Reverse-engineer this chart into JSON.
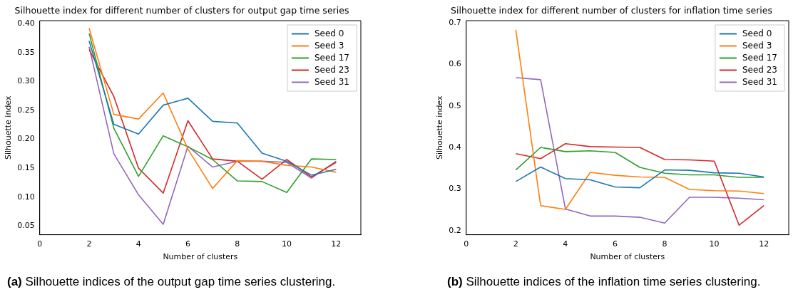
{
  "chart_data": [
    {
      "type": "line",
      "title": "Silhouette index for different number of clusters for output gap time series",
      "xlabel": "Number of clusters",
      "ylabel": "Silhouette index",
      "x": [
        2,
        3,
        4,
        5,
        6,
        7,
        8,
        9,
        10,
        11,
        12
      ],
      "series": [
        {
          "name": "Seed 0",
          "color": "#1f77b4",
          "values": [
            0.37,
            0.226,
            0.209,
            0.259,
            0.271,
            0.231,
            0.228,
            0.176,
            0.162,
            0.138,
            0.148
          ]
        },
        {
          "name": "Seed 3",
          "color": "#ff7f0e",
          "values": [
            0.392,
            0.243,
            0.235,
            0.28,
            0.183,
            0.115,
            0.163,
            0.162,
            0.155,
            0.152,
            0.143
          ]
        },
        {
          "name": "Seed 17",
          "color": "#2ca02c",
          "values": [
            0.383,
            0.219,
            0.136,
            0.206,
            0.187,
            0.165,
            0.128,
            0.127,
            0.108,
            0.166,
            0.165
          ]
        },
        {
          "name": "Seed 23",
          "color": "#d62728",
          "values": [
            0.355,
            0.274,
            0.15,
            0.107,
            0.232,
            0.166,
            0.162,
            0.131,
            0.165,
            0.135,
            0.16
          ]
        },
        {
          "name": "Seed 31",
          "color": "#9467bd",
          "values": [
            0.36,
            0.175,
            0.104,
            0.053,
            0.188,
            0.152,
            0.162,
            0.162,
            0.16,
            0.133,
            0.162
          ]
        }
      ],
      "xlim": [
        0,
        13
      ],
      "xticks": [
        0,
        2,
        4,
        6,
        8,
        10,
        12
      ],
      "ylim": [
        0.035,
        0.405
      ],
      "yticks": [
        {
          "value": 0.05,
          "label": "0.05"
        },
        {
          "value": 0.1,
          "label": "0.10"
        },
        {
          "value": 0.15,
          "label": "0.15"
        },
        {
          "value": 0.2,
          "label": "0.20"
        },
        {
          "value": 0.25,
          "label": "0.25"
        },
        {
          "value": 0.3,
          "label": "0.30"
        },
        {
          "value": 0.35,
          "label": "0.35"
        },
        {
          "value": 0.4,
          "label": "0.40"
        }
      ],
      "legend": "top right",
      "grid": false,
      "marker": "none",
      "line_style": "solid",
      "annotations": [
        "(a) Silhouette indices of the output gap time series clustering."
      ]
    },
    {
      "type": "line",
      "title": "Silhouette index for different number of clusters for inflation time series",
      "xlabel": "Number of clusters",
      "ylabel": "Silhouette index",
      "x": [
        2,
        3,
        4,
        5,
        6,
        7,
        8,
        9,
        10,
        11,
        12
      ],
      "series": [
        {
          "name": "Seed 0",
          "color": "#1f77b4",
          "values": [
            0.318,
            0.353,
            0.325,
            0.322,
            0.305,
            0.303,
            0.346,
            0.345,
            0.339,
            0.338,
            0.329
          ]
        },
        {
          "name": "Seed 3",
          "color": "#ff7f0e",
          "values": [
            0.683,
            0.26,
            0.251,
            0.34,
            0.333,
            0.329,
            0.328,
            0.299,
            0.296,
            0.295,
            0.289
          ]
        },
        {
          "name": "Seed 17",
          "color": "#2ca02c",
          "values": [
            0.346,
            0.4,
            0.39,
            0.392,
            0.388,
            0.352,
            0.338,
            0.334,
            0.334,
            0.328,
            0.328
          ]
        },
        {
          "name": "Seed 23",
          "color": "#d62728",
          "values": [
            0.385,
            0.373,
            0.409,
            0.402,
            0.401,
            0.4,
            0.371,
            0.37,
            0.367,
            0.213,
            0.26
          ]
        },
        {
          "name": "Seed 31",
          "color": "#9467bd",
          "values": [
            0.568,
            0.563,
            0.252,
            0.235,
            0.235,
            0.232,
            0.218,
            0.28,
            0.28,
            0.278,
            0.274
          ]
        }
      ],
      "xlim": [
        0,
        13
      ],
      "xticks": [
        0,
        2,
        4,
        6,
        8,
        10,
        12
      ],
      "ylim": [
        0.19,
        0.705
      ],
      "yticks": [
        0.2,
        0.3,
        0.4,
        0.5,
        0.6,
        0.7
      ],
      "legend": "top right",
      "grid": false,
      "marker": "none",
      "line_style": "solid",
      "annotations": [
        "(b) Silhouette indices of the inflation time series clustering."
      ]
    }
  ]
}
